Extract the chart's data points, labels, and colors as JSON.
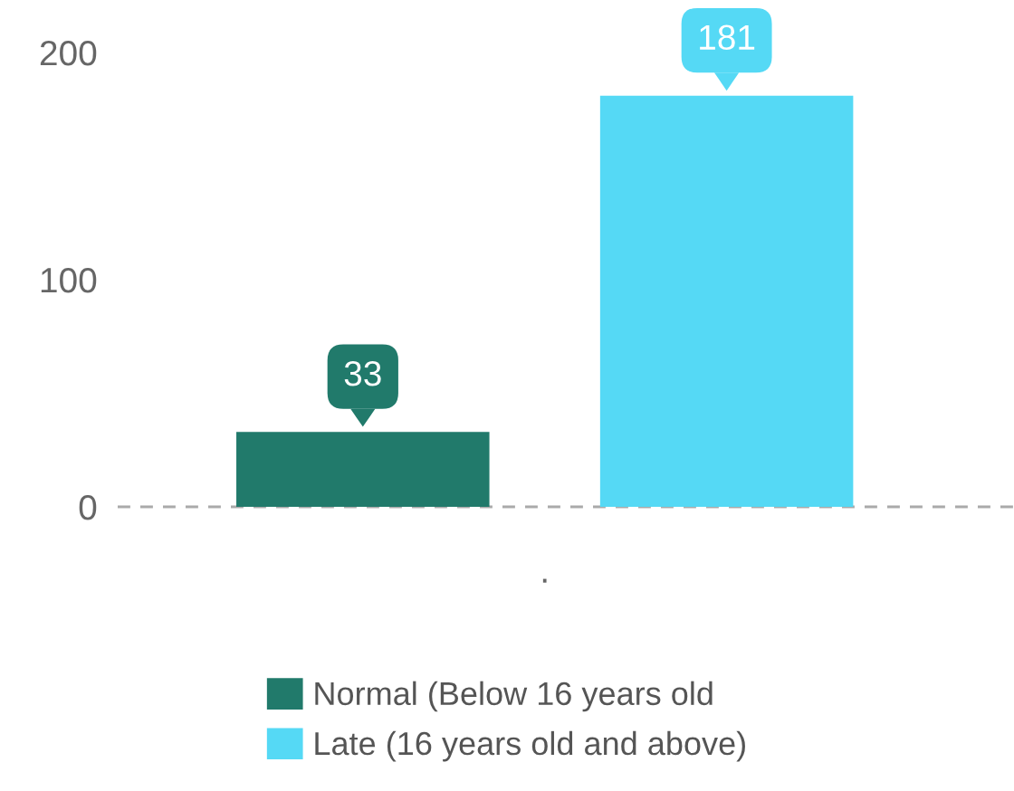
{
  "chart_data": {
    "type": "bar",
    "categories": [
      "."
    ],
    "series": [
      {
        "name": "Normal (Below 16 years old",
        "color": "#217a6b",
        "values": [
          33
        ]
      },
      {
        "name": "Late (16 years old and above)",
        "color": "#55d9f5",
        "values": [
          181
        ]
      }
    ],
    "ylim": [
      0,
      200
    ],
    "yticks": [
      0,
      100,
      200
    ],
    "grid": false,
    "legend": "bottom",
    "data_labels": true,
    "ref_lines": [
      {
        "axis": "y",
        "value": 0,
        "color": "#aaaaaa",
        "line_style": "dashed"
      }
    ]
  }
}
